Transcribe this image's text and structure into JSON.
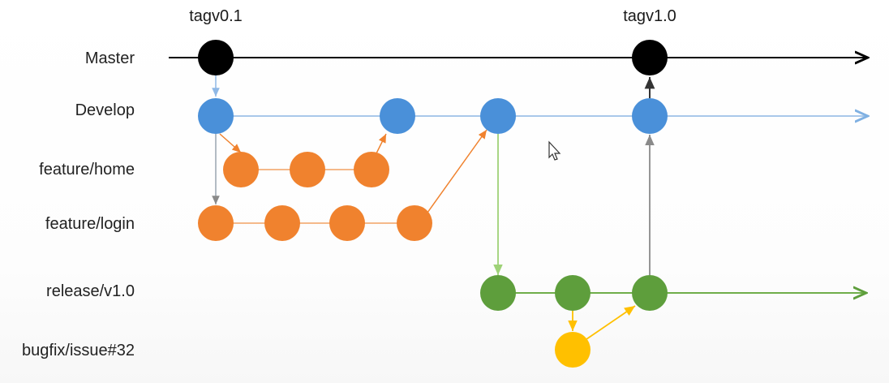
{
  "diagram": {
    "tags": [
      "tagv0.1",
      "tagv1.0"
    ],
    "branches": [
      {
        "name": "Master",
        "color": "#000000",
        "line_color": "#000000"
      },
      {
        "name": "Develop",
        "color": "#4a90d9",
        "line_color": "#a9c8ea"
      },
      {
        "name": "feature/home",
        "color": "#f0822e",
        "line_color": "#f5b98a"
      },
      {
        "name": "feature/login",
        "color": "#f0822e",
        "line_color": "#f5b98a"
      },
      {
        "name": "release/v1.0",
        "color": "#5e9e3c",
        "line_color": "#6fae4a"
      },
      {
        "name": "bugfix/issue#32",
        "color": "#ffc000",
        "line_color": "#ffc000"
      }
    ],
    "colors": {
      "master_commit": "#000000",
      "develop_commit": "#4a90d9",
      "feature_commit": "#f0822e",
      "release_commit": "#5e9e3c",
      "bugfix_commit": "#ffc000",
      "merge_gray": "#8a8a8a",
      "release_link": "#9ed277"
    }
  }
}
